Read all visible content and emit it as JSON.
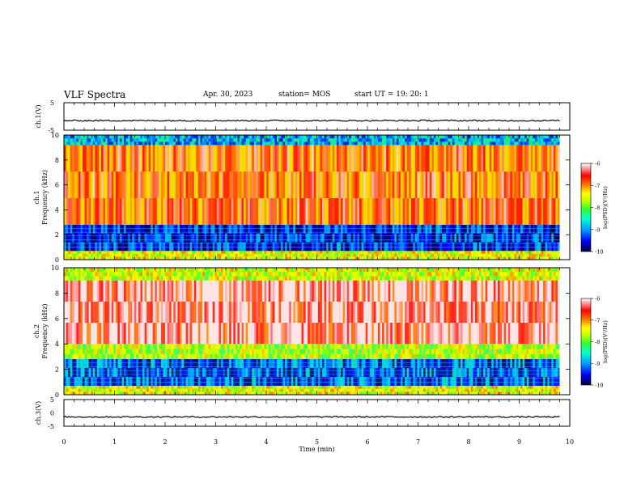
{
  "header": {
    "title": "VLF Spectra",
    "date": "Apr. 30, 2023",
    "station": "station= MOS",
    "start": "start  UT =    19: 20: 1"
  },
  "colors": {
    "background": "#ffffff",
    "axis": "#000000",
    "colormap": [
      "#00003c",
      "#0000ff",
      "#00a0ff",
      "#00ffd0",
      "#30ff30",
      "#c8ff00",
      "#ffff00",
      "#ff8000",
      "#ff0000",
      "#ffffff"
    ]
  },
  "chart_data": [
    {
      "type": "line",
      "panel": "ch1-waveform",
      "ylabel": "ch.1(V)",
      "ylim": [
        -5,
        5
      ],
      "yticks": [
        "5",
        "-5"
      ],
      "xlim": [
        0,
        10
      ],
      "series": [
        {
          "x": [
            0,
            9.8
          ],
          "values": [
            -1.5,
            -1.5
          ]
        }
      ]
    },
    {
      "type": "heatmap",
      "panel": "ch1-spectrogram",
      "ylabel_top": "ch.1",
      "ylabel": "Frequency (kHz)",
      "ylim": [
        0,
        10
      ],
      "yticks": [
        "0",
        "2",
        "4",
        "6",
        "8",
        "10"
      ],
      "xlim": [
        0,
        9.8
      ],
      "colorbar": {
        "label": "log(PSD)(V²/Hz)",
        "range": [
          -10,
          -6
        ],
        "ticks": [
          "-6",
          "-7",
          "-8",
          "-9",
          "-10"
        ]
      },
      "bands": [
        {
          "freq_khz": [
            0,
            0.7
          ],
          "log_psd": -7.5
        },
        {
          "freq_khz": [
            0.7,
            2.8
          ],
          "log_psd": -9.5
        },
        {
          "freq_khz": [
            2.8,
            9.2
          ],
          "log_psd": -6.8
        },
        {
          "freq_khz": [
            9.2,
            10
          ],
          "log_psd": -9.0
        }
      ]
    },
    {
      "type": "heatmap",
      "panel": "ch2-spectrogram",
      "ylabel_top": "ch.2",
      "ylabel": "Frequency (kHz)",
      "ylim": [
        0,
        10
      ],
      "yticks": [
        "0",
        "2",
        "4",
        "6",
        "8",
        "10"
      ],
      "xlim": [
        0,
        9.8
      ],
      "colorbar": {
        "label": "log(PSD)(V²/Hz)",
        "range": [
          -10,
          -6
        ],
        "ticks": [
          "-6",
          "-7",
          "-8",
          "-9",
          "-10"
        ]
      },
      "bands": [
        {
          "freq_khz": [
            0,
            0.7
          ],
          "log_psd": -7.5
        },
        {
          "freq_khz": [
            0.7,
            2.8
          ],
          "log_psd": -9.3
        },
        {
          "freq_khz": [
            2.8,
            4.0
          ],
          "log_psd": -7.8
        },
        {
          "freq_khz": [
            4.0,
            9.0
          ],
          "log_psd": -6.2
        },
        {
          "freq_khz": [
            9.0,
            10
          ],
          "log_psd": -7.6
        }
      ]
    },
    {
      "type": "line",
      "panel": "ch3-waveform",
      "ylabel": "ch.3(V)",
      "ylim": [
        -5,
        5
      ],
      "yticks": [
        "5",
        "0",
        "-5"
      ],
      "xlim": [
        0,
        10
      ],
      "series": [
        {
          "x": [
            0,
            9.8
          ],
          "values": [
            -1.5,
            -1.5
          ]
        }
      ]
    }
  ],
  "xaxis": {
    "label": "Time (min)",
    "ticks": [
      "0",
      "1",
      "2",
      "3",
      "4",
      "5",
      "6",
      "7",
      "8",
      "9",
      "10"
    ]
  }
}
